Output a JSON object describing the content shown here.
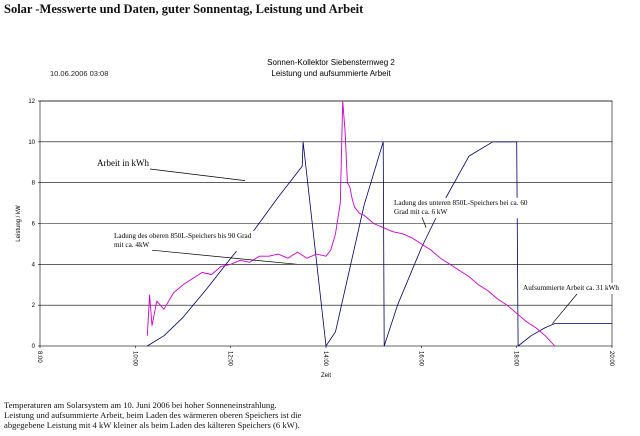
{
  "page": {
    "title": "Solar -Messwerte und Daten, guter Sonnentag, Leistung und Arbeit",
    "caption_lines": [
      "Temperaturen am Solarsystem am 10. Juni 2006 bei hoher Sonneneinstrahlung.",
      "Leistung und aufsummierte Arbeit, beim Laden des wärmeren oberen Speichers ist die",
      "abgegebene Leistung mit 4 kW kleiner als beim Laden des kälteren Speichers (6 kW)."
    ]
  },
  "chart_data": {
    "type": "line",
    "title": "Sonnen-Kollektor Siebensternweg 2",
    "subtitle": "Leistung und aufsummierte Arbeit",
    "timestamp": "10.06.2006 03:08",
    "xlabel": "Zeit",
    "ylabel": "Leistung / kW",
    "xlim": [
      8,
      20
    ],
    "ylim": [
      0,
      12
    ],
    "x_ticks": [
      "8:00",
      "10:00",
      "12:00",
      "14:00",
      "16:00",
      "18:00",
      "20:00"
    ],
    "y_ticks": [
      0,
      2,
      4,
      6,
      8,
      10,
      12
    ],
    "grid": true,
    "colors": {
      "leistung": "#cc00cc",
      "arbeit": "#000066",
      "annotation": "#000000"
    },
    "series": [
      {
        "key": "arbeit",
        "x": [
          10.25,
          10.6,
          11.0,
          11.5,
          12.0,
          12.5,
          13.0,
          13.5,
          13.52,
          14.0,
          14.2,
          14.5,
          14.8,
          15.2,
          15.22,
          15.5,
          16.0,
          16.5,
          17.0,
          17.5,
          18.0,
          18.03,
          18.3,
          18.6,
          18.8,
          20.0
        ],
        "y": [
          0,
          0.5,
          1.4,
          2.8,
          4.3,
          5.7,
          7.3,
          8.8,
          10.0,
          0.0,
          0.7,
          3.8,
          6.9,
          10.0,
          0.0,
          2.0,
          4.8,
          7.2,
          9.3,
          10.0,
          10.0,
          0.0,
          0.5,
          0.9,
          1.1,
          1.1
        ]
      },
      {
        "key": "leistung",
        "x": [
          10.25,
          10.3,
          10.35,
          10.45,
          10.6,
          10.8,
          11.0,
          11.2,
          11.4,
          11.6,
          11.8,
          12.0,
          12.2,
          12.4,
          12.6,
          12.8,
          13.0,
          13.2,
          13.4,
          13.6,
          13.8,
          14.0,
          14.1,
          14.2,
          14.3,
          14.35,
          14.4,
          14.45,
          14.5,
          14.55,
          14.6,
          14.7,
          14.8,
          14.9,
          15.0,
          15.2,
          15.4,
          15.6,
          15.8,
          16.0,
          16.2,
          16.4,
          16.6,
          16.8,
          17.0,
          17.2,
          17.4,
          17.6,
          17.8,
          18.0,
          18.2,
          18.4,
          18.6,
          18.8
        ],
        "y": [
          0.5,
          2.5,
          1.0,
          2.2,
          1.8,
          2.6,
          3.0,
          3.3,
          3.6,
          3.5,
          3.9,
          4.0,
          4.2,
          4.1,
          4.4,
          4.4,
          4.5,
          4.3,
          4.6,
          4.3,
          4.5,
          4.4,
          4.7,
          5.5,
          7.0,
          12.0,
          10.5,
          8.0,
          7.8,
          7.2,
          6.8,
          6.5,
          6.4,
          6.2,
          6.0,
          5.8,
          5.6,
          5.5,
          5.3,
          5.0,
          4.7,
          4.3,
          4.0,
          3.7,
          3.4,
          3.0,
          2.7,
          2.3,
          2.0,
          1.6,
          1.2,
          0.9,
          0.5,
          0.0
        ]
      }
    ],
    "annotations": [
      {
        "text_lines": [
          "Arbeit in kWh"
        ],
        "anchor": [
          12.3,
          8.1
        ]
      },
      {
        "text_lines": [
          "Ladung des oberen 850L-Speichers bis 90 Grad",
          "mit ca. 4kW"
        ],
        "anchor": [
          13.4,
          4.0
        ]
      },
      {
        "text_lines": [
          "Ladung des unteren 850L-Speichers bei ca. 60",
          "Grad mit ca. 6 kW"
        ],
        "anchor": [
          16.1,
          5.8
        ]
      },
      {
        "text_lines": [
          "Aufsummierte Arbeit ca. 31 kWh"
        ],
        "anchor": [
          18.75,
          1.1
        ]
      }
    ]
  }
}
